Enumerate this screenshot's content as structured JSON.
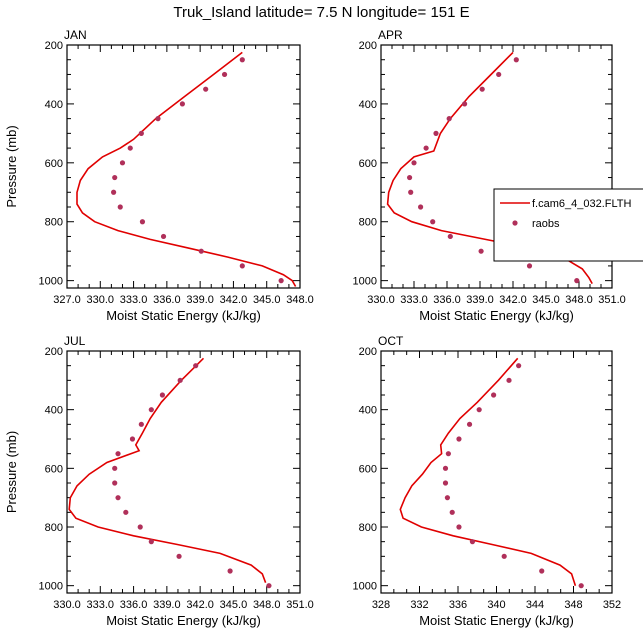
{
  "figure": {
    "title": "Truk_Island  latitude= 7.5 N longitude= 151 E"
  },
  "colors": {
    "model": "#e00000",
    "raobs": "#b0305a",
    "axis": "#000000"
  },
  "legend": {
    "model_label": "f.cam6_4_032.FLTH",
    "raobs_label": "raobs"
  },
  "chart_data": [
    {
      "type": "line",
      "panel": "JAN",
      "title": "JAN",
      "xlabel": "Moist Static Energy (kJ/kg)",
      "ylabel": "Pressure (mb)",
      "xlim": [
        327.0,
        348.0
      ],
      "ylim": [
        1025,
        200
      ],
      "xticks": [
        "327.0",
        "330.0",
        "333.0",
        "336.0",
        "339.0",
        "342.0",
        "345.0",
        "348.0"
      ],
      "yticks": [
        "200",
        "400",
        "600",
        "800",
        "1000"
      ],
      "series": [
        {
          "name": "f.cam6_4_032.FLTH",
          "x": [
            342.8,
            340.2,
            337.6,
            335.0,
            333.0,
            331.8,
            330.2,
            328.9,
            328.2,
            327.9,
            327.9,
            328.4,
            329.5,
            331.6,
            334.5,
            338.0,
            341.5,
            344.6,
            346.5,
            347.3,
            347.6
          ],
          "y": [
            225,
            300,
            375,
            450,
            520,
            550,
            580,
            620,
            660,
            700,
            740,
            770,
            800,
            830,
            860,
            890,
            920,
            950,
            980,
            1000,
            1020
          ]
        },
        {
          "name": "raobs",
          "x": [
            342.8,
            341.2,
            339.5,
            337.4,
            335.2,
            333.7,
            332.7,
            332.0,
            331.3,
            331.2,
            331.8,
            333.8,
            335.7,
            339.1,
            342.8,
            346.3
          ],
          "y": [
            250,
            300,
            350,
            400,
            450,
            500,
            550,
            600,
            650,
            700,
            750,
            800,
            850,
            900,
            950,
            1000
          ]
        }
      ]
    },
    {
      "type": "line",
      "panel": "APR",
      "title": "APR",
      "xlabel": "Moist Static Energy (kJ/kg)",
      "ylabel": "",
      "xlim": [
        330.0,
        351.0
      ],
      "ylim": [
        1025,
        200
      ],
      "xticks": [
        "330.0",
        "333.0",
        "336.0",
        "339.0",
        "342.0",
        "345.0",
        "348.0",
        "351.0"
      ],
      "yticks": [
        "200",
        "400",
        "600",
        "800",
        "1000"
      ],
      "series": [
        {
          "name": "f.cam6_4_032.FLTH",
          "x": [
            342.0,
            340.0,
            338.0,
            336.3,
            335.4,
            334.8,
            333.0,
            331.8,
            331.1,
            330.7,
            330.6,
            331.2,
            332.8,
            335.5,
            339.5,
            343.5,
            346.5,
            348.3,
            348.9,
            349.2
          ],
          "y": [
            225,
            300,
            375,
            450,
            500,
            560,
            580,
            620,
            660,
            700,
            740,
            770,
            800,
            830,
            860,
            890,
            920,
            960,
            990,
            1010
          ]
        },
        {
          "name": "raobs",
          "x": [
            342.3,
            340.7,
            339.2,
            337.6,
            336.2,
            335.0,
            334.1,
            333.0,
            332.6,
            332.7,
            333.6,
            334.7,
            336.3,
            339.1,
            343.5,
            347.8
          ],
          "y": [
            250,
            300,
            350,
            400,
            450,
            500,
            550,
            600,
            650,
            700,
            750,
            800,
            850,
            900,
            950,
            1000
          ]
        }
      ]
    },
    {
      "type": "line",
      "panel": "JUL",
      "title": "JUL",
      "xlabel": "Moist Static Energy (kJ/kg)",
      "ylabel": "Pressure (mb)",
      "xlim": [
        330.0,
        351.0
      ],
      "ylim": [
        1025,
        200
      ],
      "xticks": [
        "330.0",
        "333.0",
        "336.0",
        "339.0",
        "342.0",
        "345.0",
        "348.0",
        "351.0"
      ],
      "yticks": [
        "200",
        "400",
        "600",
        "800",
        "1000"
      ],
      "series": [
        {
          "name": "f.cam6_4_032.FLTH",
          "x": [
            342.3,
            340.3,
            338.5,
            337.5,
            336.8,
            336.2,
            336.5,
            333.6,
            332.0,
            330.9,
            330.3,
            330.2,
            330.8,
            332.8,
            336.0,
            340.0,
            343.8,
            346.6,
            347.6,
            347.9
          ],
          "y": [
            225,
            300,
            375,
            430,
            480,
            520,
            540,
            580,
            620,
            660,
            700,
            740,
            770,
            800,
            830,
            860,
            890,
            930,
            960,
            990
          ]
        },
        {
          "name": "raobs",
          "x": [
            341.6,
            340.2,
            338.6,
            337.6,
            336.7,
            335.9,
            334.6,
            334.3,
            334.3,
            334.6,
            335.3,
            336.6,
            337.6,
            340.1,
            344.7,
            348.2
          ],
          "y": [
            250,
            300,
            350,
            400,
            450,
            500,
            550,
            600,
            650,
            700,
            750,
            800,
            850,
            900,
            950,
            1000
          ]
        }
      ]
    },
    {
      "type": "line",
      "panel": "OCT",
      "title": "OCT",
      "xlabel": "Moist Static Energy (kJ/kg)",
      "ylabel": "",
      "xlim": [
        328,
        352
      ],
      "ylim": [
        1025,
        200
      ],
      "xticks": [
        "328",
        "332",
        "336",
        "340",
        "344",
        "348",
        "352"
      ],
      "yticks": [
        "200",
        "400",
        "600",
        "800",
        "1000"
      ],
      "series": [
        {
          "name": "f.cam6_4_032.FLTH",
          "x": [
            342.2,
            340.2,
            338.0,
            336.2,
            335.0,
            334.2,
            334.3,
            333.2,
            332.3,
            331.2,
            330.5,
            330.0,
            330.3,
            332.2,
            335.5,
            339.6,
            343.6,
            346.6,
            347.8,
            348.2
          ],
          "y": [
            225,
            300,
            375,
            430,
            480,
            520,
            550,
            580,
            620,
            660,
            700,
            740,
            770,
            800,
            830,
            860,
            890,
            930,
            960,
            1000
          ]
        },
        {
          "name": "raobs",
          "x": [
            342.3,
            341.3,
            339.7,
            338.2,
            337.2,
            336.1,
            335.0,
            334.7,
            334.7,
            334.9,
            335.4,
            336.1,
            337.5,
            340.8,
            344.7,
            348.8
          ],
          "y": [
            250,
            300,
            350,
            400,
            450,
            500,
            550,
            600,
            650,
            700,
            750,
            800,
            850,
            900,
            950,
            1000
          ]
        }
      ]
    }
  ]
}
